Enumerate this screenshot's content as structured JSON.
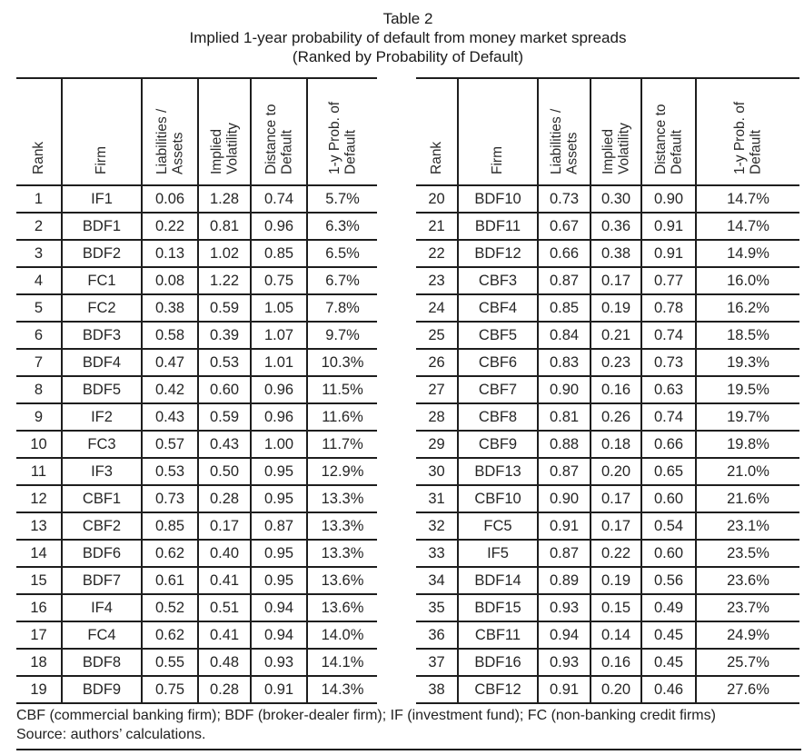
{
  "title": {
    "line1": "Table 2",
    "line2": "Implied 1-year probability of default from money market spreads",
    "line3": "(Ranked by Probability of Default)"
  },
  "columns": [
    "Rank",
    "Firm",
    "Liabilities / Assets",
    "Implied Volatility",
    "Distance to Default",
    "1-y Prob. of Default"
  ],
  "tables": {
    "left": {
      "rows": [
        [
          "1",
          "IF1",
          "0.06",
          "1.28",
          "0.74",
          "5.7%"
        ],
        [
          "2",
          "BDF1",
          "0.22",
          "0.81",
          "0.96",
          "6.3%"
        ],
        [
          "3",
          "BDF2",
          "0.13",
          "1.02",
          "0.85",
          "6.5%"
        ],
        [
          "4",
          "FC1",
          "0.08",
          "1.22",
          "0.75",
          "6.7%"
        ],
        [
          "5",
          "FC2",
          "0.38",
          "0.59",
          "1.05",
          "7.8%"
        ],
        [
          "6",
          "BDF3",
          "0.58",
          "0.39",
          "1.07",
          "9.7%"
        ],
        [
          "7",
          "BDF4",
          "0.47",
          "0.53",
          "1.01",
          "10.3%"
        ],
        [
          "8",
          "BDF5",
          "0.42",
          "0.60",
          "0.96",
          "11.5%"
        ],
        [
          "9",
          "IF2",
          "0.43",
          "0.59",
          "0.96",
          "11.6%"
        ],
        [
          "10",
          "FC3",
          "0.57",
          "0.43",
          "1.00",
          "11.7%"
        ],
        [
          "11",
          "IF3",
          "0.53",
          "0.50",
          "0.95",
          "12.9%"
        ],
        [
          "12",
          "CBF1",
          "0.73",
          "0.28",
          "0.95",
          "13.3%"
        ],
        [
          "13",
          "CBF2",
          "0.85",
          "0.17",
          "0.87",
          "13.3%"
        ],
        [
          "14",
          "BDF6",
          "0.62",
          "0.40",
          "0.95",
          "13.3%"
        ],
        [
          "15",
          "BDF7",
          "0.61",
          "0.41",
          "0.95",
          "13.6%"
        ],
        [
          "16",
          "IF4",
          "0.52",
          "0.51",
          "0.94",
          "13.6%"
        ],
        [
          "17",
          "FC4",
          "0.62",
          "0.41",
          "0.94",
          "14.0%"
        ],
        [
          "18",
          "BDF8",
          "0.55",
          "0.48",
          "0.93",
          "14.1%"
        ],
        [
          "19",
          "BDF9",
          "0.75",
          "0.28",
          "0.91",
          "14.3%"
        ]
      ]
    },
    "right": {
      "rows": [
        [
          "20",
          "BDF10",
          "0.73",
          "0.30",
          "0.90",
          "14.7%"
        ],
        [
          "21",
          "BDF11",
          "0.67",
          "0.36",
          "0.91",
          "14.7%"
        ],
        [
          "22",
          "BDF12",
          "0.66",
          "0.38",
          "0.91",
          "14.9%"
        ],
        [
          "23",
          "CBF3",
          "0.87",
          "0.17",
          "0.77",
          "16.0%"
        ],
        [
          "24",
          "CBF4",
          "0.85",
          "0.19",
          "0.78",
          "16.2%"
        ],
        [
          "25",
          "CBF5",
          "0.84",
          "0.21",
          "0.74",
          "18.5%"
        ],
        [
          "26",
          "CBF6",
          "0.83",
          "0.23",
          "0.73",
          "19.3%"
        ],
        [
          "27",
          "CBF7",
          "0.90",
          "0.16",
          "0.63",
          "19.5%"
        ],
        [
          "28",
          "CBF8",
          "0.81",
          "0.26",
          "0.74",
          "19.7%"
        ],
        [
          "29",
          "CBF9",
          "0.88",
          "0.18",
          "0.66",
          "19.8%"
        ],
        [
          "30",
          "BDF13",
          "0.87",
          "0.20",
          "0.65",
          "21.0%"
        ],
        [
          "31",
          "CBF10",
          "0.90",
          "0.17",
          "0.60",
          "21.6%"
        ],
        [
          "32",
          "FC5",
          "0.91",
          "0.17",
          "0.54",
          "23.1%"
        ],
        [
          "33",
          "IF5",
          "0.87",
          "0.22",
          "0.60",
          "23.5%"
        ],
        [
          "34",
          "BDF14",
          "0.89",
          "0.19",
          "0.56",
          "23.6%"
        ],
        [
          "35",
          "BDF15",
          "0.93",
          "0.15",
          "0.49",
          "23.7%"
        ],
        [
          "36",
          "CBF11",
          "0.94",
          "0.14",
          "0.45",
          "24.9%"
        ],
        [
          "37",
          "BDF16",
          "0.93",
          "0.16",
          "0.45",
          "25.7%"
        ],
        [
          "38",
          "CBF12",
          "0.91",
          "0.20",
          "0.46",
          "27.6%"
        ]
      ]
    }
  },
  "footnotes": {
    "definitions": "CBF (commercial banking firm); BDF (broker-dealer firm); IF (investment fund); FC (non-banking credit firms)",
    "source": "Source: authors’ calculations."
  }
}
